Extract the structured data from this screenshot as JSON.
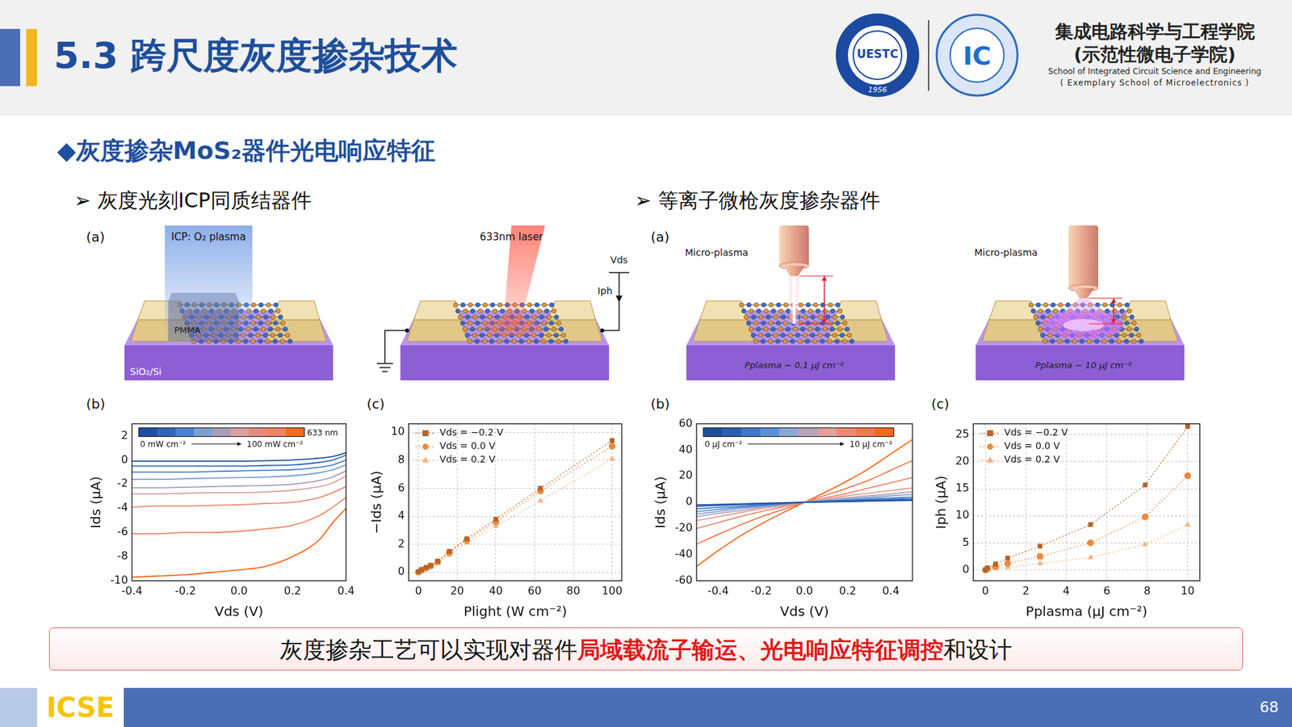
{
  "header": {
    "title": "5.3 跨尺度灰度掺杂技术",
    "logos": [
      {
        "text": "UESTC",
        "year": "1956"
      },
      {
        "text": "IC"
      }
    ],
    "school": [
      "集成电路科学与工程学院",
      "(示范性微电子学院)",
      "School of Integrated Circuit Science and Engineering",
      "( Exemplary School of Microelectronics )"
    ]
  },
  "subtitle": "◆灰度掺杂MoS₂器件光电响应特征",
  "sections": [
    {
      "heading": "➢ 灰度光刻ICP同质结器件",
      "panel_a": "(a)",
      "schematics": [
        {
          "kind": "icp",
          "labels": {
            "beam": "ICP: O₂ plasma",
            "mask": "PMMA",
            "substrate": "SiO₂/Si"
          }
        },
        {
          "kind": "laser",
          "labels": {
            "beam": "633nm laser",
            "voltage": "Vds",
            "current": "Iph"
          }
        }
      ],
      "chart_panels": [
        "(b)",
        "(c)"
      ]
    },
    {
      "heading": "➢ 等离子微枪灰度掺杂器件",
      "panel_a": "(a)",
      "schematics": [
        {
          "kind": "plasma_low",
          "labels": {
            "source": "Micro-plasma",
            "dose": "Pplasma ~ 0.1 μJ cm⁻²"
          }
        },
        {
          "kind": "plasma_high",
          "labels": {
            "source": "Micro-plasma",
            "dose": "Pplasma ~ 10 μJ cm⁻²"
          }
        }
      ],
      "chart_panels": [
        "(b)",
        "(c)"
      ]
    }
  ],
  "chart_data": [
    {
      "type": "line",
      "x_label": "Vds (V)",
      "y_label": "Ids (μA)",
      "x": [
        -0.4,
        -0.3,
        -0.2,
        -0.1,
        0,
        0.1,
        0.2,
        0.3,
        0.35,
        0.4
      ],
      "xlim": [
        -0.4,
        0.4
      ],
      "xticks": [
        -0.4,
        -0.2,
        {
          "value": 0,
          "label": "0.0"
        },
        0.2,
        0.4
      ],
      "ylim": [
        -10,
        3
      ],
      "yticks": [
        -10,
        -8,
        -6,
        -4,
        -2,
        0,
        2
      ],
      "grid": false,
      "colorbar": {
        "start": "0 mW cm⁻²",
        "end": "100 mW cm⁻²",
        "label": "633 nm"
      },
      "series": [
        {
          "color": "#1f4f9f",
          "values": [
            -0.1,
            -0.1,
            -0.1,
            -0.1,
            -0.1,
            -0.05,
            0,
            0.15,
            0.3,
            0.6
          ]
        },
        {
          "color": "#2f66b8",
          "values": [
            -0.5,
            -0.5,
            -0.5,
            -0.5,
            -0.5,
            -0.45,
            -0.4,
            -0.2,
            0,
            0.4
          ]
        },
        {
          "color": "#4a82cf",
          "values": [
            -1.0,
            -1.0,
            -1.0,
            -0.95,
            -0.9,
            -0.85,
            -0.8,
            -0.6,
            -0.4,
            0.0
          ]
        },
        {
          "color": "#7c9fd4",
          "values": [
            -1.6,
            -1.6,
            -1.55,
            -1.5,
            -1.45,
            -1.4,
            -1.3,
            -1.05,
            -0.8,
            -0.4
          ]
        },
        {
          "color": "#a99db8",
          "values": [
            -2.3,
            -2.3,
            -2.25,
            -2.2,
            -2.15,
            -2.1,
            -2.0,
            -1.7,
            -1.4,
            -0.9
          ]
        },
        {
          "color": "#d9a0a0",
          "values": [
            -2.8,
            -2.8,
            -2.75,
            -2.7,
            -2.7,
            -2.65,
            -2.5,
            -2.2,
            -1.9,
            -1.3
          ]
        },
        {
          "color": "#e88a7a",
          "values": [
            -3.9,
            -3.8,
            -3.8,
            -3.75,
            -3.7,
            -3.6,
            -3.5,
            -3.1,
            -2.7,
            -2.2
          ]
        },
        {
          "color": "#ef8460",
          "values": [
            -6.1,
            -6.1,
            -6.0,
            -6.0,
            -5.9,
            -5.7,
            -5.4,
            -4.6,
            -3.9,
            -3.1
          ]
        },
        {
          "color": "#f26b1d",
          "values": [
            -9.7,
            -9.6,
            -9.5,
            -9.3,
            -9.1,
            -8.8,
            -8.0,
            -6.6,
            -5.2,
            -4.0
          ]
        }
      ]
    },
    {
      "type": "scatter",
      "x_label": "Plight (W cm⁻²)",
      "y_label": "−Ids (μA)",
      "x": [
        0,
        1.6,
        4,
        6.3,
        10,
        16,
        25,
        40,
        63,
        100
      ],
      "xlim": [
        -5,
        105
      ],
      "xticks": [
        0,
        20,
        40,
        60,
        80,
        100
      ],
      "ylim": [
        -0.6,
        10.6
      ],
      "yticks": [
        0,
        2,
        4,
        6,
        8,
        10
      ],
      "grid": true,
      "legend": "top-left",
      "series": [
        {
          "name": "Vds = −0.2 V",
          "color": "#b5652a",
          "marker": "square",
          "line_style": "dotted",
          "values": [
            0.05,
            0.2,
            0.35,
            0.5,
            0.8,
            1.5,
            2.4,
            3.8,
            6.0,
            9.4
          ]
        },
        {
          "name": "Vds = 0.0 V",
          "color": "#ee8a3c",
          "marker": "circle",
          "line_style": "dotted",
          "values": [
            0.02,
            0.15,
            0.3,
            0.45,
            0.75,
            1.4,
            2.3,
            3.6,
            5.8,
            9.0
          ]
        },
        {
          "name": "Vds = 0.2 V",
          "color": "#f4b27c",
          "marker": "triangle",
          "line_style": "dotted",
          "values": [
            0,
            0.1,
            0.25,
            0.4,
            0.65,
            1.25,
            2.1,
            3.3,
            5.1,
            8.1
          ]
        }
      ]
    },
    {
      "type": "line",
      "x_label": "Vds (V)",
      "y_label": "Ids (μA)",
      "x": [
        -0.5,
        -0.4,
        -0.3,
        -0.2,
        -0.1,
        0,
        0.1,
        0.2,
        0.3,
        0.4,
        0.5
      ],
      "xlim": [
        -0.5,
        0.5
      ],
      "xticks": [
        -0.4,
        -0.2,
        {
          "value": 0,
          "label": "0.0"
        },
        0.2,
        0.4
      ],
      "ylim": [
        -60,
        60
      ],
      "yticks": [
        -60,
        -40,
        -20,
        0,
        20,
        40,
        60
      ],
      "grid": false,
      "colorbar": {
        "start": "0 μJ cm⁻²",
        "end": "10 μJ cm⁻²"
      },
      "series": [
        {
          "color": "#1f4f9f",
          "values": [
            -2,
            -1.6,
            -1.2,
            -0.8,
            -0.4,
            0,
            0.3,
            0.6,
            0.9,
            1.2,
            1.5
          ]
        },
        {
          "color": "#2a5fae",
          "values": [
            -3,
            -2.4,
            -1.8,
            -1.2,
            -0.6,
            0,
            0.5,
            0.9,
            1.3,
            1.7,
            2
          ]
        },
        {
          "color": "#3f78c6",
          "values": [
            -5,
            -4,
            -3,
            -2,
            -1,
            0,
            0.8,
            1.4,
            2,
            2.5,
            3
          ]
        },
        {
          "color": "#5b90d8",
          "values": [
            -7,
            -5.5,
            -4,
            -2.6,
            -1.3,
            0,
            1,
            2,
            2.8,
            3.4,
            4
          ]
        },
        {
          "color": "#8aa8d4",
          "values": [
            -9,
            -7,
            -5,
            -3.3,
            -1.6,
            0,
            1.4,
            2.6,
            3.8,
            5,
            6
          ]
        },
        {
          "color": "#b7a4b6",
          "values": [
            -11,
            -8.5,
            -6.5,
            -4,
            -2,
            0,
            1.8,
            3.5,
            5,
            6.5,
            8
          ]
        },
        {
          "color": "#e2a19a",
          "values": [
            -14,
            -11,
            -8,
            -5,
            -2.5,
            0,
            2.5,
            5,
            7,
            9,
            11
          ]
        },
        {
          "color": "#ec8a72",
          "values": [
            -20,
            -15.5,
            -11,
            -7,
            -3.5,
            0,
            3.5,
            7,
            11,
            15,
            19
          ]
        },
        {
          "color": "#f07a4c",
          "values": [
            -32,
            -24.5,
            -17.5,
            -11,
            -5.5,
            0,
            5.5,
            11,
            17,
            24.5,
            32
          ]
        },
        {
          "color": "#f26b1d",
          "values": [
            -49,
            -37,
            -26,
            -16.5,
            -8,
            0,
            8,
            16.5,
            26,
            37,
            48
          ]
        }
      ]
    },
    {
      "type": "scatter",
      "x_label": "Pplasma (μJ cm⁻²)",
      "y_label": "Iph (μA)",
      "x": [
        0,
        0.1,
        0.5,
        1.1,
        2.7,
        5.2,
        7.9,
        10
      ],
      "xlim": [
        -0.6,
        10.6
      ],
      "xticks": [
        0,
        2,
        4,
        6,
        8,
        10
      ],
      "ylim": [
        -2,
        27
      ],
      "yticks": [
        0,
        5,
        10,
        15,
        20,
        25
      ],
      "grid": true,
      "legend": "top-left",
      "series": [
        {
          "name": "Vds = −0.2 V",
          "color": "#b5652a",
          "marker": "square",
          "line_style": "dotted",
          "values": [
            0,
            0.4,
            1.1,
            2.2,
            4.4,
            8.4,
            15.7,
            26.5
          ]
        },
        {
          "name": "Vds = 0.0 V",
          "color": "#ee8a3c",
          "marker": "circle",
          "line_style": "dotted",
          "values": [
            0,
            0.2,
            0.6,
            1.2,
            2.5,
            5.0,
            9.8,
            17.4
          ]
        },
        {
          "name": "Vds = 0.2 V",
          "color": "#f4b27c",
          "marker": "triangle",
          "line_style": "dotted",
          "values": [
            0,
            0.1,
            0.3,
            0.5,
            1.2,
            2.3,
            4.7,
            8.3
          ]
        }
      ]
    }
  ],
  "conclusion": [
    {
      "text": "灰度掺杂工艺可以实现对器件",
      "highlight": false
    },
    {
      "text": "局域载流子输运、光电响应特征调控",
      "highlight": true
    },
    {
      "text": "和设计",
      "highlight": false
    }
  ],
  "footer": {
    "left": "ICSE",
    "page": "68"
  }
}
